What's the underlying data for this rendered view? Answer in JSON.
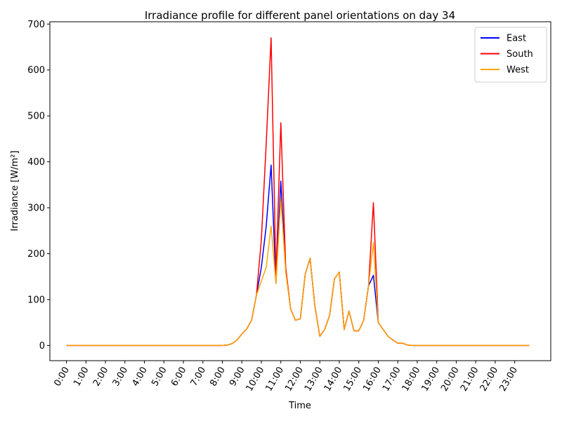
{
  "chart_data": {
    "type": "line",
    "title": "Irradiance profile for different panel orientations on day 34",
    "xlabel": "Time",
    "ylabel": "Irradiance [W/m²]",
    "ylim": [
      -33,
      705
    ],
    "yticks": [
      0,
      100,
      200,
      300,
      400,
      500,
      600,
      700
    ],
    "xlim": [
      -0.85,
      24.85
    ],
    "x_tick_labels": [
      "0:00",
      "1:00",
      "2:00",
      "3:00",
      "4:00",
      "5:00",
      "6:00",
      "7:00",
      "8:00",
      "9:00",
      "10:00",
      "11:00",
      "12:00",
      "13:00",
      "14:00",
      "15:00",
      "16:00",
      "17:00",
      "18:00",
      "19:00",
      "20:00",
      "21:00",
      "22:00",
      "23:00"
    ],
    "grid": false,
    "legend_position": "top-right",
    "x": [
      0,
      0.25,
      0.5,
      0.75,
      1,
      1.25,
      1.5,
      1.75,
      2,
      2.25,
      2.5,
      2.75,
      3,
      3.25,
      3.5,
      3.75,
      4,
      4.25,
      4.5,
      4.75,
      5,
      5.25,
      5.5,
      5.75,
      6,
      6.25,
      6.5,
      6.75,
      7,
      7.25,
      7.5,
      7.75,
      8,
      8.25,
      8.5,
      8.75,
      9,
      9.25,
      9.5,
      9.75,
      10,
      10.25,
      10.5,
      10.75,
      11,
      11.25,
      11.5,
      11.75,
      12,
      12.25,
      12.5,
      12.75,
      13,
      13.25,
      13.5,
      13.75,
      14,
      14.25,
      14.5,
      14.75,
      15,
      15.25,
      15.5,
      15.75,
      16,
      16.25,
      16.5,
      16.75,
      17,
      17.25,
      17.5,
      17.75,
      18,
      18.25,
      18.5,
      18.75,
      19,
      19.25,
      19.5,
      19.75,
      20,
      20.25,
      20.5,
      20.75,
      21,
      21.25,
      21.5,
      21.75,
      22,
      22.25,
      22.5,
      22.75,
      23,
      23.25,
      23.5,
      23.75
    ],
    "series": [
      {
        "name": "East",
        "color": "#0000ff",
        "values": [
          0,
          0,
          0,
          0,
          0,
          0,
          0,
          0,
          0,
          0,
          0,
          0,
          0,
          0,
          0,
          0,
          0,
          0,
          0,
          0,
          0,
          0,
          0,
          0,
          0,
          0,
          0,
          0,
          0,
          0,
          0,
          0,
          0,
          1,
          4,
          12,
          25,
          36,
          55,
          110,
          170,
          260,
          393,
          135,
          358,
          165,
          80,
          55,
          58,
          155,
          190,
          85,
          20,
          35,
          65,
          145,
          160,
          35,
          75,
          32,
          32,
          55,
          130,
          153,
          50,
          35,
          20,
          12,
          5,
          5,
          1,
          0,
          0,
          0,
          0,
          0,
          0,
          0,
          0,
          0,
          0,
          0,
          0,
          0,
          0,
          0,
          0,
          0,
          0,
          0,
          0,
          0,
          0,
          0,
          0,
          0
        ]
      },
      {
        "name": "South",
        "color": "#ff0000",
        "values": [
          0,
          0,
          0,
          0,
          0,
          0,
          0,
          0,
          0,
          0,
          0,
          0,
          0,
          0,
          0,
          0,
          0,
          0,
          0,
          0,
          0,
          0,
          0,
          0,
          0,
          0,
          0,
          0,
          0,
          0,
          0,
          0,
          0,
          1,
          4,
          12,
          25,
          36,
          55,
          110,
          230,
          440,
          670,
          150,
          485,
          170,
          80,
          55,
          58,
          155,
          190,
          85,
          20,
          35,
          65,
          145,
          160,
          35,
          75,
          32,
          32,
          55,
          130,
          311,
          50,
          35,
          20,
          12,
          5,
          5,
          1,
          0,
          0,
          0,
          0,
          0,
          0,
          0,
          0,
          0,
          0,
          0,
          0,
          0,
          0,
          0,
          0,
          0,
          0,
          0,
          0,
          0,
          0,
          0,
          0,
          0
        ]
      },
      {
        "name": "West",
        "color": "#ffa500",
        "values": [
          0,
          0,
          0,
          0,
          0,
          0,
          0,
          0,
          0,
          0,
          0,
          0,
          0,
          0,
          0,
          0,
          0,
          0,
          0,
          0,
          0,
          0,
          0,
          0,
          0,
          0,
          0,
          0,
          0,
          0,
          0,
          0,
          0,
          1,
          4,
          12,
          25,
          36,
          55,
          110,
          140,
          170,
          260,
          135,
          320,
          160,
          80,
          55,
          58,
          155,
          190,
          85,
          20,
          35,
          65,
          145,
          160,
          35,
          75,
          32,
          32,
          55,
          130,
          225,
          50,
          35,
          20,
          12,
          5,
          5,
          1,
          0,
          0,
          0,
          0,
          0,
          0,
          0,
          0,
          0,
          0,
          0,
          0,
          0,
          0,
          0,
          0,
          0,
          0,
          0,
          0,
          0,
          0,
          0,
          0,
          0
        ]
      }
    ]
  }
}
